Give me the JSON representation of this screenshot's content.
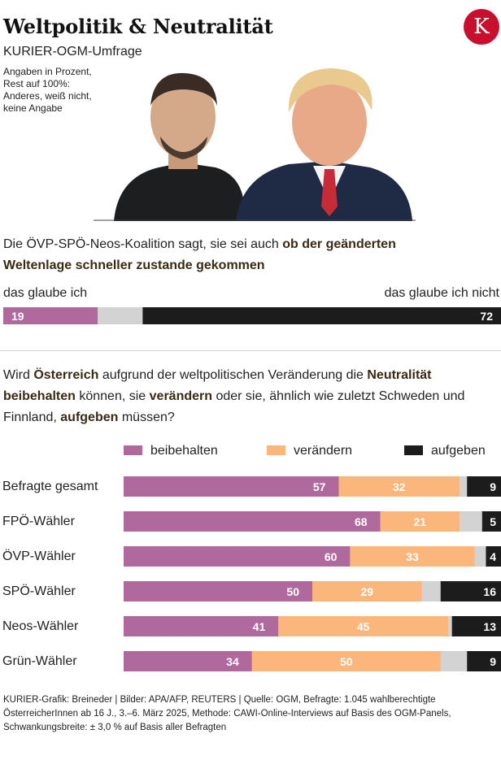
{
  "header": {
    "title": "Weltpolitik & Neutralität",
    "subtitle": "KURIER-OGM-Umfrage",
    "note_lines": [
      "Angaben in Prozent,",
      "Rest auf 100%:",
      "Anderes, weiß nicht,",
      "keine Angabe"
    ],
    "logo_letter": "K"
  },
  "colors": {
    "beibehalten": "#b0699d",
    "veraendern": "#fbb67c",
    "aufgeben": "#1c1c1c",
    "rest": "#d3d3d3",
    "logo": "#c8102e"
  },
  "question1": {
    "plain": "Die ÖVP-SPÖ-Neos-Koalition sagt, sie sei auch ",
    "bold": "ob der geänderten Weltenlage schneller zustande gekommen"
  },
  "chart_data": [
    {
      "type": "bar",
      "orientation": "horizontal-stacked",
      "categories": [
        "Befragte gesamt"
      ],
      "series": [
        {
          "name": "das glaube ich",
          "values": [
            19
          ]
        },
        {
          "name": "Rest",
          "values": [
            9
          ]
        },
        {
          "name": "das glaube ich nicht",
          "values": [
            72
          ]
        }
      ],
      "left_label": "das glaube ich",
      "right_label": "das glaube ich nicht",
      "xlim": [
        0,
        100
      ]
    },
    {
      "type": "bar",
      "orientation": "horizontal-stacked",
      "categories": [
        "Befragte gesamt",
        "FPÖ-Wähler",
        "ÖVP-Wähler",
        "SPÖ-Wähler",
        "Neos-Wähler",
        "Grün-Wähler"
      ],
      "series": [
        {
          "name": "beibehalten",
          "values": [
            57,
            68,
            60,
            50,
            41,
            34
          ]
        },
        {
          "name": "verändern",
          "values": [
            32,
            21,
            33,
            29,
            45,
            50
          ]
        },
        {
          "name": "aufgeben",
          "values": [
            9,
            5,
            4,
            16,
            13,
            9
          ]
        }
      ],
      "legend": "top",
      "xlim": [
        0,
        100
      ]
    }
  ],
  "question2": {
    "parts": [
      {
        "t": "Wird ",
        "b": false
      },
      {
        "t": "Österreich",
        "b": true
      },
      {
        "t": " aufgrund der weltpolitischen Veränderung die ",
        "b": false
      },
      {
        "t": "Neutralität beibehalten",
        "b": true
      },
      {
        "t": " können, sie ",
        "b": false
      },
      {
        "t": "verändern",
        "b": true
      },
      {
        "t": " oder sie, ähnlich wie zuletzt Schweden und Finnland, ",
        "b": false
      },
      {
        "t": "aufgeben",
        "b": true
      },
      {
        "t": " müssen?",
        "b": false
      }
    ]
  },
  "footer": {
    "lines": [
      "KURIER-Grafik: Breineder | Bilder: APA/AFP, REUTERS | Quelle: OGM, Befragte: 1.045 wahlberechtigte",
      "ÖsterreicherInnen ab 16 J., 3.–6. März 2025,  Methode: CAWI-Online-Interviews auf Basis des OGM-Panels,",
      "Schwankungsbreite: ± 3,0 % auf Basis aller Befragten"
    ]
  }
}
